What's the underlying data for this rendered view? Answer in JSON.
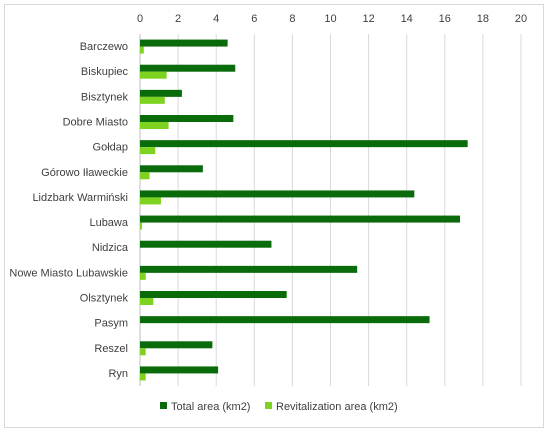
{
  "chart_data": {
    "type": "bar",
    "orientation": "horizontal",
    "title": "",
    "xlabel": "",
    "ylabel": "",
    "xlim": [
      0,
      20
    ],
    "xticks": [
      0,
      2,
      4,
      6,
      8,
      10,
      12,
      14,
      16,
      18,
      20
    ],
    "x_axis_position": "top",
    "grid": true,
    "legend_position": "bottom",
    "categories": [
      "Barczewo",
      "Biskupiec",
      "Bisztynek",
      "Dobre Miasto",
      "Gołdap",
      "Górowo Iławeckie",
      "Lidzbark Warmiński",
      "Lubawa",
      "Nidzica",
      "Nowe Miasto Lubawskie",
      "Olsztynek",
      "Pasym",
      "Reszel",
      "Ryn"
    ],
    "series": [
      {
        "name": "Total area (km2)",
        "color": "#0a6b0a",
        "values": [
          4.6,
          5.0,
          2.2,
          4.9,
          17.2,
          3.3,
          14.4,
          16.8,
          6.9,
          11.4,
          7.7,
          15.2,
          3.8,
          4.1
        ]
      },
      {
        "name": "Revitalization area (km2)",
        "color": "#7ed321",
        "values": [
          0.2,
          1.4,
          1.3,
          1.5,
          0.8,
          0.5,
          1.1,
          0.1,
          0.0,
          0.3,
          0.7,
          0.0,
          0.3,
          0.3
        ]
      }
    ]
  }
}
